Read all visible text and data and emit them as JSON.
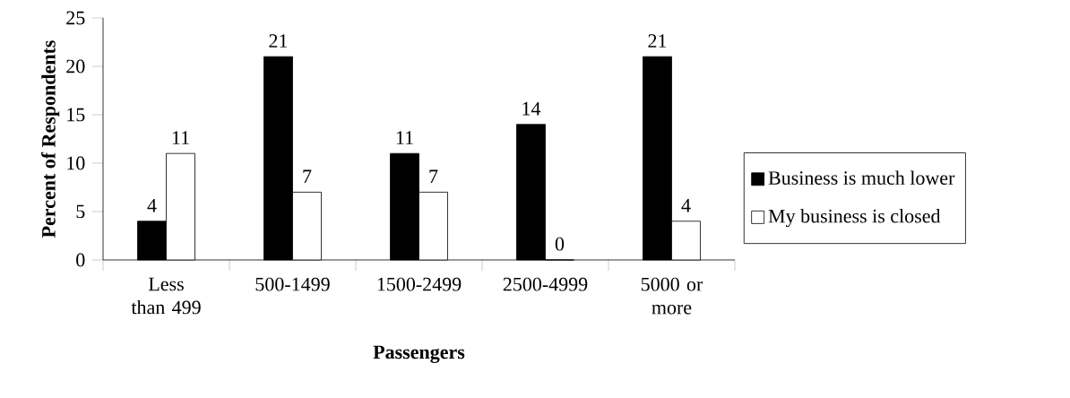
{
  "chart_data": {
    "type": "bar",
    "xlabel": "Passengers",
    "ylabel": "Percent of Respondents",
    "categories": [
      "Less than 499",
      "500-1499",
      "1500-2499",
      "2500-4999",
      "5000 or more"
    ],
    "series": [
      {
        "name": "Business is much lower",
        "color": "#000000",
        "values": [
          4,
          21,
          11,
          14,
          21
        ]
      },
      {
        "name": "My business is closed",
        "color": "#ffffff",
        "values": [
          11,
          7,
          7,
          0,
          4
        ]
      }
    ],
    "ylim": [
      0,
      25
    ],
    "yticks": [
      0,
      5,
      10,
      15,
      20,
      25
    ],
    "data_labels": true,
    "grid": false,
    "legend": "right"
  }
}
